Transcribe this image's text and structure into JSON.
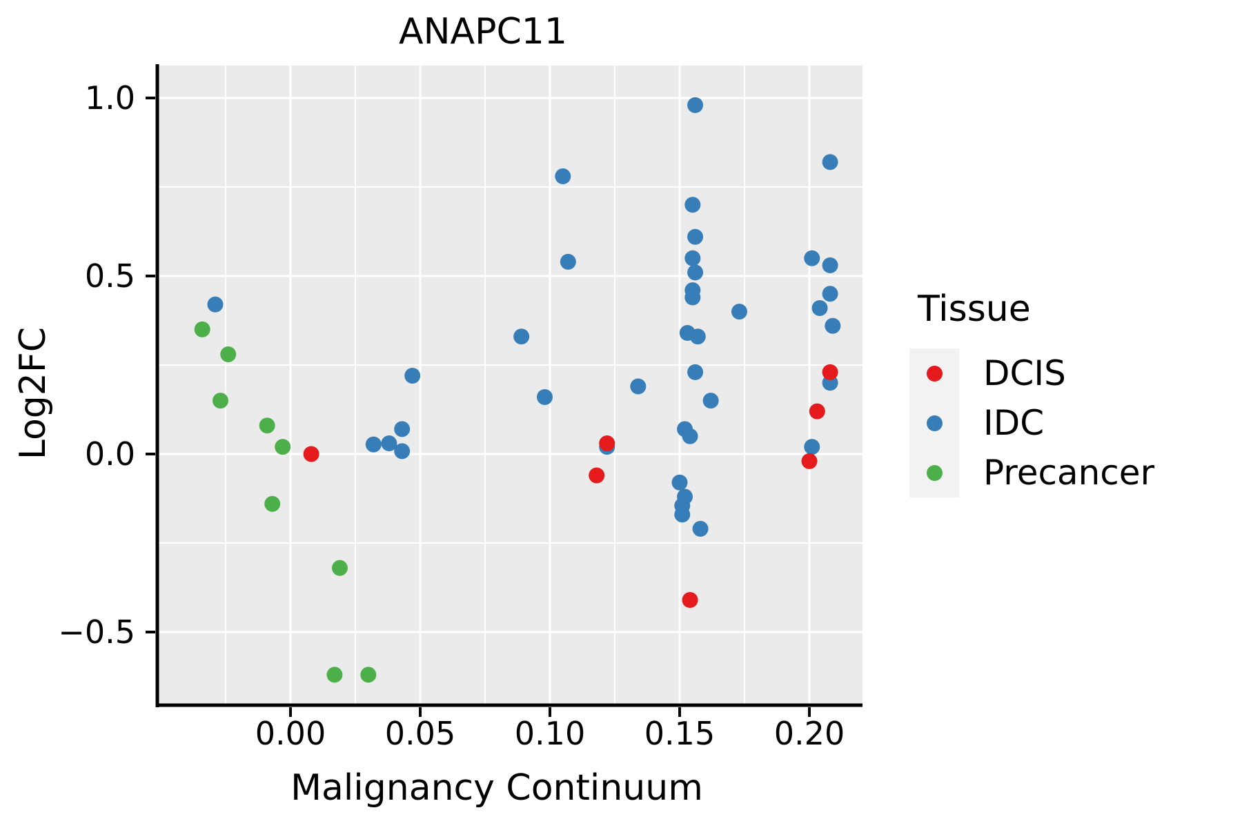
{
  "title": "ANAPC11",
  "x_axis": {
    "label": "Malignancy Continuum",
    "tick_labels": [
      "0.00",
      "0.05",
      "0.10",
      "0.15",
      "0.20"
    ],
    "tick_values": [
      0.0,
      0.05,
      0.1,
      0.15,
      0.2
    ],
    "minor_values": [
      -0.025,
      0.025,
      0.075,
      0.125,
      0.175
    ]
  },
  "y_axis": {
    "label": "Log2FC",
    "tick_labels": [
      "1.0",
      "0.5",
      "0.0",
      "−0.5"
    ],
    "tick_values": [
      1.0,
      0.5,
      0.0,
      -0.5
    ],
    "minor_values": [
      0.75,
      0.25,
      -0.25
    ]
  },
  "legend": {
    "title": "Tissue",
    "items": [
      {
        "label": "DCIS",
        "color": "#e41a1c"
      },
      {
        "label": "IDC",
        "color": "#377eb8"
      },
      {
        "label": "Precancer",
        "color": "#4daf4a"
      }
    ]
  },
  "colors": {
    "panel_bg": "#ebebeb",
    "grid": "#ffffff",
    "axis": "#000000",
    "legend_key_bg": "#f2f2f2"
  },
  "chart_data": {
    "type": "scatter",
    "title": "ANAPC11",
    "xlabel": "Malignancy Continuum",
    "ylabel": "Log2FC",
    "xlim": [
      -0.053,
      0.22
    ],
    "ylim": [
      -0.7,
      1.09
    ],
    "grid": true,
    "legend_position": "right",
    "series": [
      {
        "name": "DCIS",
        "color": "#e41a1c",
        "points": [
          [
            0.008,
            0.0
          ],
          [
            0.122,
            0.03
          ],
          [
            0.118,
            -0.06
          ],
          [
            0.154,
            -0.41
          ],
          [
            0.208,
            0.23
          ],
          [
            0.203,
            0.12
          ],
          [
            0.2,
            -0.02
          ]
        ]
      },
      {
        "name": "IDC",
        "color": "#377eb8",
        "points": [
          [
            -0.029,
            0.42
          ],
          [
            0.032,
            0.027
          ],
          [
            0.038,
            0.03
          ],
          [
            0.043,
            0.07
          ],
          [
            0.043,
            0.008
          ],
          [
            0.047,
            0.22
          ],
          [
            0.089,
            0.33
          ],
          [
            0.098,
            0.16
          ],
          [
            0.105,
            0.78
          ],
          [
            0.107,
            0.54
          ],
          [
            0.122,
            0.02
          ],
          [
            0.134,
            0.19
          ],
          [
            0.15,
            -0.08
          ],
          [
            0.152,
            -0.12
          ],
          [
            0.151,
            -0.145
          ],
          [
            0.151,
            -0.17
          ],
          [
            0.158,
            -0.21
          ],
          [
            0.152,
            0.07
          ],
          [
            0.154,
            0.05
          ],
          [
            0.153,
            0.34
          ],
          [
            0.157,
            0.33
          ],
          [
            0.155,
            0.44
          ],
          [
            0.155,
            0.46
          ],
          [
            0.156,
            0.51
          ],
          [
            0.155,
            0.55
          ],
          [
            0.156,
            0.61
          ],
          [
            0.155,
            0.7
          ],
          [
            0.156,
            0.98
          ],
          [
            0.156,
            0.23
          ],
          [
            0.162,
            0.15
          ],
          [
            0.173,
            0.4
          ],
          [
            0.201,
            0.55
          ],
          [
            0.208,
            0.53
          ],
          [
            0.208,
            0.82
          ],
          [
            0.208,
            0.45
          ],
          [
            0.204,
            0.41
          ],
          [
            0.209,
            0.36
          ],
          [
            0.208,
            0.2
          ],
          [
            0.201,
            0.02
          ]
        ]
      },
      {
        "name": "Precancer",
        "color": "#4daf4a",
        "points": [
          [
            -0.034,
            0.35
          ],
          [
            -0.024,
            0.28
          ],
          [
            -0.027,
            0.15
          ],
          [
            -0.009,
            0.08
          ],
          [
            -0.003,
            0.02
          ],
          [
            -0.007,
            -0.14
          ],
          [
            0.019,
            -0.32
          ],
          [
            0.017,
            -0.62
          ],
          [
            0.03,
            -0.62
          ]
        ]
      }
    ]
  }
}
